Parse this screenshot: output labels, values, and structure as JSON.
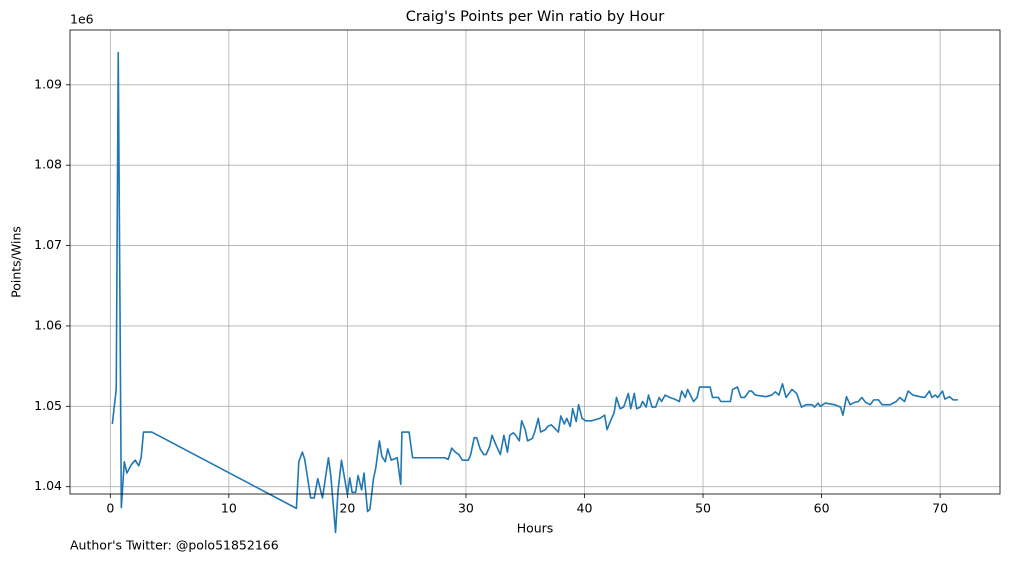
{
  "chart_data": {
    "type": "line",
    "title": "Craig's Points per Win ratio by Hour",
    "x_label": "Hours",
    "y_label": "Points/Wins",
    "y_offset_label": "1e6",
    "footnote": "Author's Twitter: @polo51852166",
    "x": [
      0.17,
      0.5,
      0.67,
      0.93,
      1.18,
      1.4,
      1.8,
      2.1,
      2.4,
      2.6,
      2.8,
      3.5,
      15.7,
      15.9,
      16.2,
      16.4,
      16.9,
      17.2,
      17.5,
      17.9,
      18.4,
      18.6,
      19.0,
      19.2,
      19.5,
      20.0,
      20.2,
      20.4,
      20.7,
      20.9,
      21.2,
      21.4,
      21.7,
      21.9,
      22.2,
      22.4,
      22.7,
      22.9,
      23.2,
      23.4,
      23.7,
      24.2,
      24.5,
      24.6,
      25.2,
      25.5,
      28.2,
      28.5,
      28.8,
      29.1,
      29.4,
      29.7,
      30.2,
      30.4,
      30.7,
      30.9,
      31.2,
      31.5,
      31.7,
      32.0,
      32.2,
      32.5,
      32.9,
      33.2,
      33.5,
      33.7,
      34.0,
      34.2,
      34.5,
      34.7,
      35.0,
      35.2,
      35.6,
      35.8,
      36.1,
      36.3,
      36.7,
      36.9,
      37.2,
      37.4,
      37.8,
      38.0,
      38.3,
      38.5,
      38.8,
      39.0,
      39.3,
      39.5,
      39.8,
      40.1,
      40.6,
      41.3,
      41.7,
      41.9,
      42.2,
      42.5,
      42.7,
      43.0,
      43.3,
      43.7,
      43.9,
      44.2,
      44.4,
      44.7,
      44.9,
      45.2,
      45.4,
      45.7,
      46.0,
      46.3,
      46.5,
      46.8,
      47.2,
      47.6,
      48.0,
      48.2,
      48.5,
      48.7,
      49.2,
      49.5,
      49.7,
      50.6,
      50.8,
      51.3,
      51.5,
      52.3,
      52.5,
      52.9,
      53.2,
      53.5,
      53.9,
      54.1,
      54.4,
      55.3,
      55.8,
      56.1,
      56.4,
      56.7,
      57.0,
      57.5,
      57.9,
      58.3,
      58.7,
      59.2,
      59.4,
      59.7,
      59.9,
      60.3,
      61.1,
      61.6,
      61.8,
      62.1,
      62.4,
      62.8,
      63.1,
      63.4,
      63.7,
      64.1,
      64.4,
      64.8,
      65.1,
      65.8,
      66.3,
      66.6,
      67.0,
      67.3,
      67.7,
      68.3,
      68.7,
      69.1,
      69.3,
      69.6,
      69.8,
      70.2,
      70.4,
      70.8,
      71.1,
      71.5
    ],
    "series": [
      {
        "color": "#1f77b4",
        "values": [
          1.0478,
          1.0521,
          1.094,
          1.0374,
          1.0431,
          1.0417,
          1.0428,
          1.0433,
          1.0426,
          1.0436,
          1.0468,
          1.0468,
          1.0373,
          1.0431,
          1.0443,
          1.0434,
          1.0386,
          1.0386,
          1.041,
          1.0386,
          1.0436,
          1.0414,
          1.0343,
          1.0393,
          1.0433,
          1.039,
          1.0411,
          1.0393,
          1.0393,
          1.0414,
          1.0396,
          1.0417,
          1.0369,
          1.0372,
          1.041,
          1.0424,
          1.0457,
          1.0438,
          1.0431,
          1.0447,
          1.0433,
          1.0436,
          1.0403,
          1.0468,
          1.0468,
          1.0436,
          1.0436,
          1.0434,
          1.0448,
          1.0443,
          1.044,
          1.0433,
          1.0433,
          1.044,
          1.0461,
          1.0461,
          1.0447,
          1.044,
          1.044,
          1.045,
          1.0464,
          1.0453,
          1.044,
          1.0464,
          1.0443,
          1.0464,
          1.0467,
          1.0464,
          1.0457,
          1.0482,
          1.0471,
          1.0457,
          1.046,
          1.0468,
          1.0485,
          1.0468,
          1.0471,
          1.0475,
          1.0477,
          1.0474,
          1.0468,
          1.0488,
          1.0478,
          1.0485,
          1.0475,
          1.0497,
          1.0481,
          1.0502,
          1.0485,
          1.0482,
          1.0482,
          1.0485,
          1.0489,
          1.0471,
          1.0482,
          1.0492,
          1.0511,
          1.0497,
          1.0499,
          1.0516,
          1.0497,
          1.0516,
          1.0497,
          1.0499,
          1.0506,
          1.0499,
          1.0514,
          1.0499,
          1.0499,
          1.0511,
          1.0506,
          1.0514,
          1.0511,
          1.0509,
          1.0506,
          1.0519,
          1.0511,
          1.0521,
          1.0506,
          1.0511,
          1.0524,
          1.0524,
          1.0511,
          1.0511,
          1.0506,
          1.0506,
          1.0521,
          1.0524,
          1.0511,
          1.0511,
          1.0519,
          1.0519,
          1.0514,
          1.0512,
          1.0514,
          1.0518,
          1.0514,
          1.0528,
          1.0511,
          1.0521,
          1.0516,
          1.0499,
          1.0502,
          1.0502,
          1.0499,
          1.0504,
          1.05,
          1.0504,
          1.0502,
          1.0499,
          1.0489,
          1.0512,
          1.0502,
          1.0505,
          1.0506,
          1.0511,
          1.0505,
          1.0502,
          1.0508,
          1.0508,
          1.0502,
          1.0502,
          1.0506,
          1.0511,
          1.0506,
          1.0519,
          1.0514,
          1.0512,
          1.0511,
          1.0519,
          1.0511,
          1.0514,
          1.0511,
          1.0519,
          1.0509,
          1.0512,
          1.0508,
          1.0508
        ]
      }
    ],
    "xlim": [
      -3.4,
      75.05
    ],
    "ylim": [
      1.03909,
      1.09682
    ],
    "xticks": [
      0,
      10,
      20,
      30,
      40,
      50,
      60,
      70
    ],
    "yticks": [
      1.04,
      1.05,
      1.06,
      1.07,
      1.08,
      1.09
    ],
    "grid": true
  }
}
